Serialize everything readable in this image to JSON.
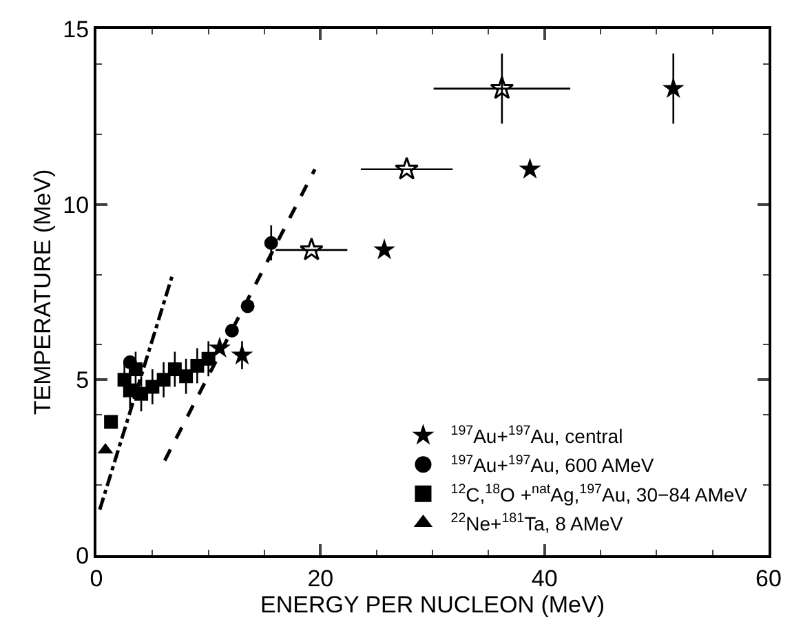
{
  "chart_data": {
    "type": "scatter",
    "xlabel": "ENERGY PER NUCLEON (MeV)",
    "ylabel": "TEMPERATURE (MeV)",
    "xlim": [
      0,
      60
    ],
    "ylim": [
      0,
      15
    ],
    "xticks": [
      0,
      20,
      40,
      60
    ],
    "yticks": [
      0,
      5,
      10,
      15
    ],
    "legend": "bottom right",
    "series": [
      {
        "name": "$^{197}$Au+$^{197}$Au, central",
        "color": "#000000",
        "marker": "star",
        "x": [
          51.5,
          38.7,
          25.7,
          13.0,
          11.0
        ],
        "values": [
          13.3,
          11.0,
          8.7,
          5.7,
          5.9
        ],
        "errors": [
          1.0,
          null,
          null,
          0.4,
          null
        ]
      },
      {
        "color": "#000000",
        "marker": "star-open",
        "x": [
          36.2,
          27.7,
          19.2
        ],
        "values": [
          13.3,
          11.0,
          8.7
        ],
        "errors": [
          1.0,
          null,
          null
        ],
        "xerrors": [
          6.1,
          4.1,
          3.2
        ]
      },
      {
        "name": "$^{197}$Au+$^{197}$Au, 600 AMeV",
        "color": "#000000",
        "marker": "circle",
        "x": [
          3.0,
          5.0,
          7.0,
          9.0,
          12.1,
          13.5,
          15.6
        ],
        "values": [
          5.5,
          null,
          null,
          null,
          6.4,
          7.1,
          8.9
        ],
        "errors": [
          null,
          null,
          null,
          null,
          null,
          null,
          0.5
        ]
      },
      {
        "name": "$^{12}$C,$^{18}$O +$^{nat}$Ag,$^{197}$Au, 30−84 AMeV",
        "color": "#000000",
        "marker": "square",
        "x": [
          1.3,
          2.5,
          3.0,
          3.5,
          4.0,
          5.0,
          6.0,
          7.0,
          8.0,
          9.0,
          10.0
        ],
        "values": [
          3.8,
          5.0,
          4.7,
          5.3,
          4.6,
          4.8,
          5.0,
          5.3,
          5.1,
          5.4,
          5.6
        ],
        "errors": [
          null,
          0.5,
          0.5,
          0.5,
          0.5,
          0.5,
          0.5,
          0.5,
          0.5,
          0.5,
          0.5
        ]
      },
      {
        "name": "$^{22}$Ne+$^{181}$Ta, 8 AMeV",
        "color": "#000000",
        "marker": "triangle",
        "x": [
          0.8
        ],
        "values": [
          3.0
        ]
      },
      {
        "type": "line",
        "color": "#000000",
        "line_style": "dashed",
        "marker": "none",
        "x": [
          6.1,
          19.5
        ],
        "values": [
          2.7,
          11.0
        ]
      },
      {
        "type": "line",
        "color": "#000000",
        "line_style": "dashdot",
        "marker": "none",
        "x": [
          0.3,
          6.8
        ],
        "values": [
          1.3,
          8.0
        ]
      }
    ]
  }
}
